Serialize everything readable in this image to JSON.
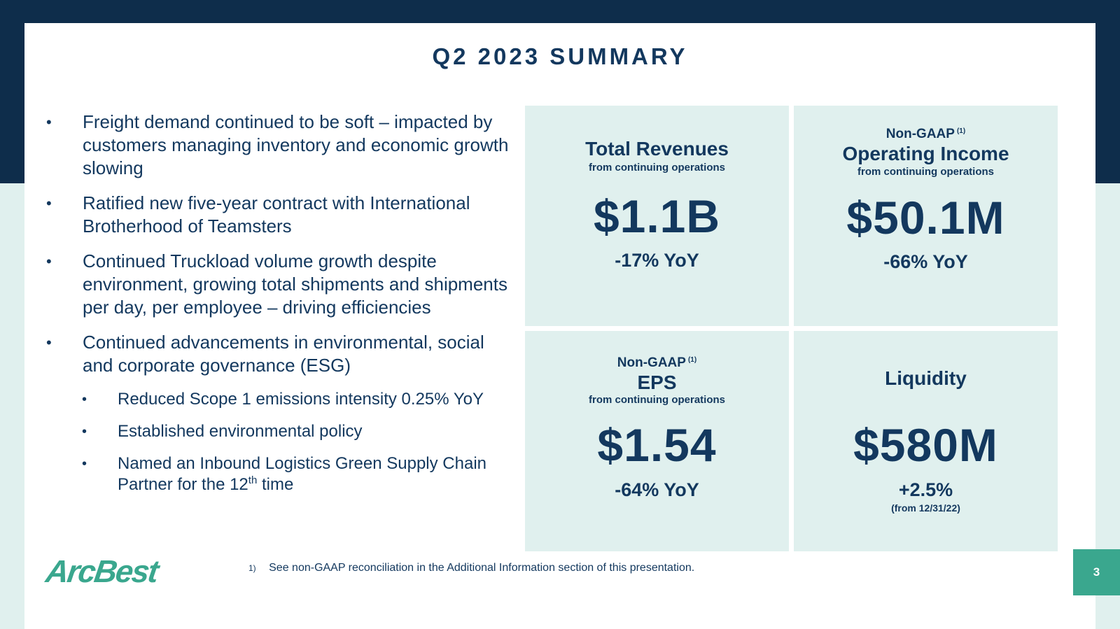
{
  "title": "Q2 2023 SUMMARY",
  "bullet_char": "•",
  "bullets": {
    "b1": "Freight demand continued to be soft – impacted by customers managing inventory and economic growth slowing",
    "b2": "Ratified new five-year contract with International Brotherhood of Teamsters",
    "b3": "Continued Truckload volume growth despite environment, growing total shipments and shipments per day, per employee – driving efficiencies",
    "b4": "Continued advancements in environmental, social and corporate governance (ESG)",
    "s1": "Reduced Scope 1 emissions intensity 0.25% YoY",
    "s2": "Established environmental policy",
    "s3_pre": "Named an Inbound Logistics Green Supply Chain Partner for the 12",
    "s3_sup": "th",
    "s3_post": " time"
  },
  "tiles": {
    "revenue": {
      "title": "Total Revenues",
      "sub": "from continuing operations",
      "value": "$1.1B",
      "yoy": "-17% YoY"
    },
    "opincome": {
      "pre": "Non-GAAP",
      "pre_sup": "(1)",
      "title": "Operating Income",
      "sub": "from continuing operations",
      "value": "$50.1M",
      "yoy": "-66% YoY"
    },
    "eps": {
      "pre": "Non-GAAP",
      "pre_sup": "(1)",
      "title": "EPS",
      "sub": "from continuing operations",
      "value": "$1.54",
      "yoy": "-64% YoY"
    },
    "liquidity": {
      "title": "Liquidity",
      "value": "$580M",
      "yoy": "+2.5%",
      "note": "(from 12/31/22)"
    }
  },
  "logo": "ArcBest",
  "footnote": {
    "num": "1)",
    "text": "See non-GAAP reconciliation in the Additional Information section of this presentation."
  },
  "page_number": "3",
  "colors": {
    "navy": "#0e2d4b",
    "text": "#13385e",
    "tile_bg": "#e0f0ee",
    "accent_green": "#3aa78e"
  }
}
